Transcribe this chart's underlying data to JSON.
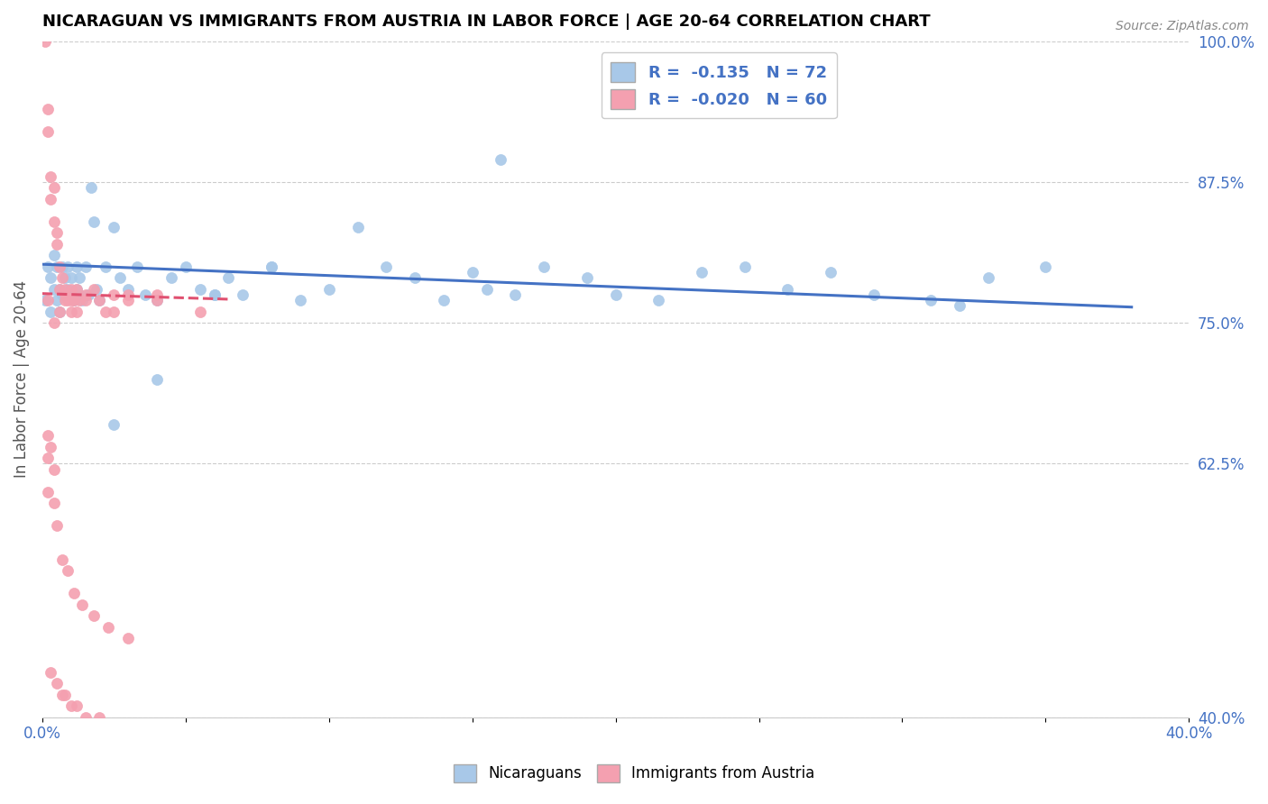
{
  "title": "NICARAGUAN VS IMMIGRANTS FROM AUSTRIA IN LABOR FORCE | AGE 20-64 CORRELATION CHART",
  "source": "Source: ZipAtlas.com",
  "ylabel": "In Labor Force | Age 20-64",
  "xlim": [
    0.0,
    0.4
  ],
  "ylim": [
    0.4,
    1.0
  ],
  "xtick_positions": [
    0.0,
    0.05,
    0.1,
    0.15,
    0.2,
    0.25,
    0.3,
    0.35,
    0.4
  ],
  "xtick_labels": [
    "0.0%",
    "",
    "",
    "",
    "",
    "",
    "",
    "",
    "40.0%"
  ],
  "ytick_positions": [
    0.4,
    0.625,
    0.75,
    0.875,
    1.0
  ],
  "ytick_labels": [
    "40.0%",
    "62.5%",
    "75.0%",
    "87.5%",
    "100.0%"
  ],
  "legend_r_blue": "-0.135",
  "legend_n_blue": "72",
  "legend_r_pink": "-0.020",
  "legend_n_pink": "60",
  "blue_color": "#A8C8E8",
  "pink_color": "#F4A0B0",
  "trend_blue_color": "#4472C4",
  "trend_pink_color": "#E05070",
  "blue_trend_x": [
    0.0,
    0.38
  ],
  "blue_trend_y": [
    0.802,
    0.764
  ],
  "pink_trend_x": [
    0.0,
    0.065
  ],
  "pink_trend_y": [
    0.776,
    0.771
  ],
  "blue_x": [
    0.001,
    0.002,
    0.003,
    0.003,
    0.004,
    0.004,
    0.005,
    0.005,
    0.006,
    0.006,
    0.007,
    0.007,
    0.008,
    0.008,
    0.009,
    0.009,
    0.01,
    0.01,
    0.011,
    0.011,
    0.012,
    0.012,
    0.013,
    0.013,
    0.014,
    0.015,
    0.016,
    0.017,
    0.018,
    0.019,
    0.02,
    0.022,
    0.025,
    0.027,
    0.03,
    0.033,
    0.036,
    0.04,
    0.045,
    0.05,
    0.055,
    0.06,
    0.065,
    0.07,
    0.08,
    0.09,
    0.1,
    0.11,
    0.12,
    0.13,
    0.14,
    0.155,
    0.165,
    0.175,
    0.19,
    0.2,
    0.215,
    0.23,
    0.245,
    0.26,
    0.275,
    0.29,
    0.31,
    0.33,
    0.35,
    0.025,
    0.04,
    0.06,
    0.08,
    0.15,
    0.32,
    0.16
  ],
  "blue_y": [
    0.77,
    0.8,
    0.76,
    0.79,
    0.78,
    0.81,
    0.77,
    0.8,
    0.76,
    0.78,
    0.8,
    0.775,
    0.79,
    0.775,
    0.78,
    0.8,
    0.775,
    0.79,
    0.77,
    0.775,
    0.8,
    0.78,
    0.79,
    0.775,
    0.77,
    0.8,
    0.775,
    0.87,
    0.84,
    0.78,
    0.77,
    0.8,
    0.835,
    0.79,
    0.78,
    0.8,
    0.775,
    0.77,
    0.79,
    0.8,
    0.78,
    0.775,
    0.79,
    0.775,
    0.8,
    0.77,
    0.78,
    0.835,
    0.8,
    0.79,
    0.77,
    0.78,
    0.775,
    0.8,
    0.79,
    0.775,
    0.77,
    0.795,
    0.8,
    0.78,
    0.795,
    0.775,
    0.77,
    0.79,
    0.8,
    0.66,
    0.7,
    0.775,
    0.8,
    0.795,
    0.765,
    0.895
  ],
  "pink_x": [
    0.001,
    0.002,
    0.002,
    0.003,
    0.003,
    0.004,
    0.004,
    0.005,
    0.005,
    0.006,
    0.006,
    0.007,
    0.008,
    0.008,
    0.009,
    0.01,
    0.01,
    0.011,
    0.012,
    0.013,
    0.015,
    0.018,
    0.022,
    0.025,
    0.03,
    0.04,
    0.055,
    0.002,
    0.004,
    0.006,
    0.008,
    0.01,
    0.012,
    0.015,
    0.02,
    0.025,
    0.03,
    0.04,
    0.002,
    0.004,
    0.005,
    0.007,
    0.009,
    0.011,
    0.014,
    0.018,
    0.023,
    0.03,
    0.003,
    0.005,
    0.007,
    0.008,
    0.01,
    0.012,
    0.015,
    0.02,
    0.002,
    0.003,
    0.002,
    0.004
  ],
  "pink_y": [
    1.0,
    0.94,
    0.92,
    0.88,
    0.86,
    0.84,
    0.87,
    0.83,
    0.82,
    0.8,
    0.78,
    0.79,
    0.77,
    0.78,
    0.77,
    0.76,
    0.78,
    0.77,
    0.78,
    0.77,
    0.77,
    0.78,
    0.76,
    0.775,
    0.77,
    0.775,
    0.76,
    0.77,
    0.75,
    0.76,
    0.775,
    0.77,
    0.76,
    0.775,
    0.77,
    0.76,
    0.775,
    0.77,
    0.63,
    0.62,
    0.57,
    0.54,
    0.53,
    0.51,
    0.5,
    0.49,
    0.48,
    0.47,
    0.44,
    0.43,
    0.42,
    0.42,
    0.41,
    0.41,
    0.4,
    0.4,
    0.65,
    0.64,
    0.6,
    0.59
  ]
}
